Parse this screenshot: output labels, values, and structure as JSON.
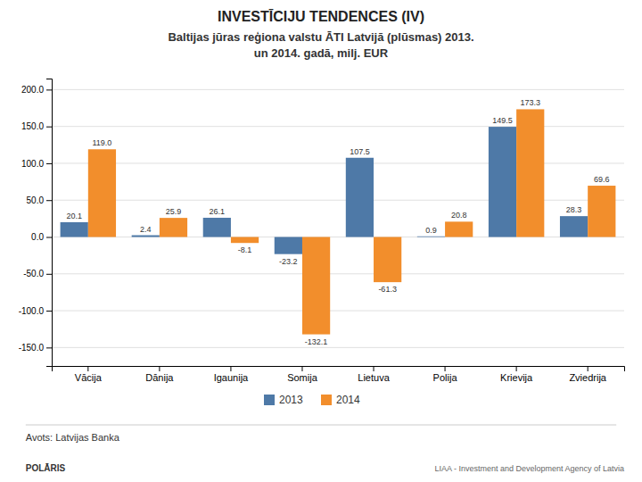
{
  "chart_data": {
    "type": "bar",
    "title": "INVESTĪCIJU TENDENCES (IV)",
    "subtitle": "Baltijas jūras reģiona valstu ĀTI Latvijā (plūsmas) 2013.\nun 2014. gadā, milj. EUR",
    "categories": [
      "Vācija",
      "Dānija",
      "Igaunija",
      "Somija",
      "Lietuva",
      "Polija",
      "Krievija",
      "Zviedrija"
    ],
    "series": [
      {
        "name": "2013",
        "values": [
          20.1,
          2.4,
          26.1,
          -23.2,
          107.5,
          0.9,
          149.5,
          28.3
        ],
        "value_labels": [
          "20.1",
          "2.4",
          "26.1",
          "-23.2",
          "107.5",
          "0.9",
          "149.5",
          "28.3"
        ]
      },
      {
        "name": "2014",
        "values": [
          119.0,
          25.9,
          -8.1,
          -132.1,
          -61.3,
          20.8,
          173.3,
          69.6
        ],
        "value_labels": [
          "119.0",
          "25.9",
          "-8.1",
          "-132.1",
          "-61.3",
          "20.8",
          "173.3",
          "69.6"
        ]
      }
    ],
    "ylim": [
      -175,
      215
    ],
    "yticks": [
      {
        "value": -150,
        "label": "-150.0"
      },
      {
        "value": -100,
        "label": "-100.0"
      },
      {
        "value": -50,
        "label": "-50.0"
      },
      {
        "value": 0,
        "label": "0.0"
      },
      {
        "value": 50,
        "label": "50.0"
      },
      {
        "value": 100,
        "label": "100.0"
      },
      {
        "value": 150,
        "label": "150.0"
      },
      {
        "value": 200,
        "label": "200.0"
      }
    ],
    "grid": true,
    "legend": "bottom",
    "data_labels": true,
    "annotations": [
      "Avots: Latvijas Banka",
      "POLĀRIS",
      "LIAA - Investment and Development Agency of Latvia"
    ]
  }
}
